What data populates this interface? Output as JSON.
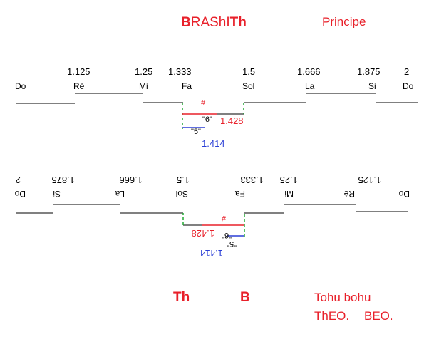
{
  "header": {
    "brashith_parts": [
      "B",
      "RAShI",
      "Th"
    ],
    "principe": "Principe"
  },
  "upper_scale": {
    "notes": [
      "Do",
      "Ré",
      "Mi",
      "Fa",
      "Sol",
      "La",
      "Si",
      "Do"
    ],
    "ratios": [
      "1.125",
      "1.25",
      "1.333",
      "1.5",
      "1.666",
      "1.875",
      "2"
    ],
    "sharp": "#",
    "sixth_label": "\"6\"",
    "sixth_value": "1.428",
    "fifth_label": "\"5\"",
    "fifth_value": "1.414"
  },
  "lower_scale": {
    "notes": [
      "Do",
      "Si",
      "La",
      "Sol",
      "Fa",
      "Mi",
      "Ré",
      "Do"
    ],
    "ratios": [
      "2",
      "1.875",
      "1.666",
      "1.5",
      "1.333",
      "1.25",
      "1.125"
    ],
    "sharp": "#",
    "sixth_label": "\"6\"",
    "sixth_value": "1.428",
    "fifth_label": "\"5\"",
    "fifth_value": "1.414"
  },
  "footer": {
    "th": "Th",
    "b": "B",
    "tohu_bohu": "Tohu bohu",
    "theo": "ThEO.",
    "beo": "BEO."
  },
  "colors": {
    "accent_red": "#e8202a",
    "accent_blue": "#2b3fd6",
    "accent_green": "#22aa33",
    "line": "#000000"
  }
}
